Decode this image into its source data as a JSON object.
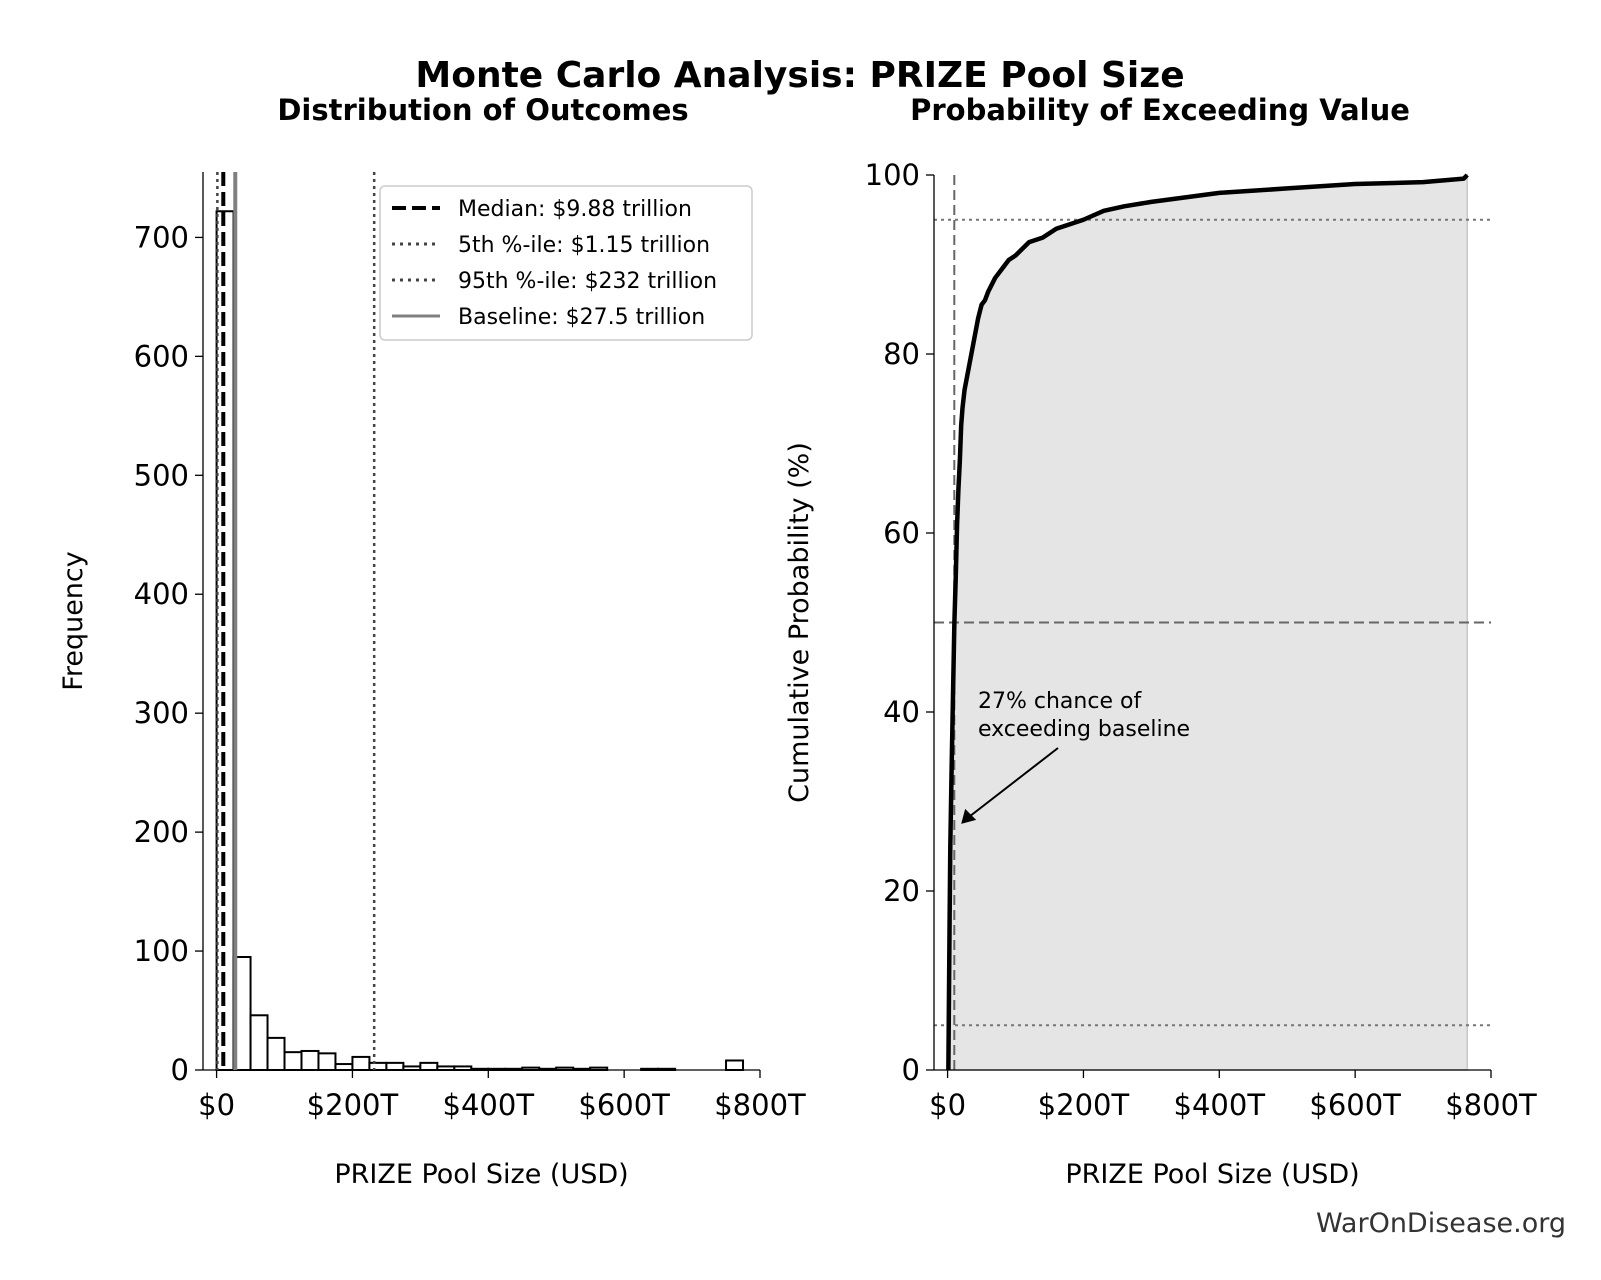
{
  "title": "Monte Carlo Analysis: PRIZE Pool Size",
  "credit": "WarOnDisease.org",
  "chart_data": [
    {
      "type": "bar",
      "subtitle": "Distribution of Outcomes",
      "xlabel": "PRIZE Pool Size (USD)",
      "ylabel": "Frequency",
      "xlim": [
        -20,
        800
      ],
      "ylim": [
        0,
        755
      ],
      "xticks": [
        0,
        200,
        400,
        600,
        800
      ],
      "xtick_labels": [
        "$0",
        "$200T",
        "$400T",
        "$600T",
        "$800T"
      ],
      "yticks": [
        0,
        100,
        200,
        300,
        400,
        500,
        600,
        700
      ],
      "ytick_labels": [
        "0",
        "100",
        "200",
        "300",
        "400",
        "500",
        "600",
        "700"
      ],
      "bin_width": 25,
      "bin_starts": [
        0,
        25,
        50,
        75,
        100,
        125,
        150,
        175,
        200,
        225,
        250,
        275,
        300,
        325,
        350,
        375,
        400,
        425,
        450,
        475,
        500,
        525,
        550,
        575,
        600,
        625,
        650,
        675,
        700,
        725,
        750
      ],
      "values": [
        722,
        95,
        46,
        27,
        15,
        16,
        14,
        5,
        11,
        6,
        6,
        3,
        6,
        3,
        3,
        1,
        1,
        1,
        2,
        1,
        2,
        1,
        2,
        0,
        0,
        1,
        1,
        0,
        0,
        0,
        8
      ],
      "reference_lines": [
        {
          "label": "Median: $9.88 trillion",
          "x": 9.88,
          "style": "dashed",
          "color": "#000000"
        },
        {
          "label": "5th %-ile: $1.15 trillion",
          "x": 1.15,
          "style": "dotted",
          "color": "#444444"
        },
        {
          "label": "95th %-ile: $232 trillion",
          "x": 232,
          "style": "dotted",
          "color": "#444444"
        },
        {
          "label": "Baseline: $27.5 trillion",
          "x": 27.5,
          "style": "solid",
          "color": "#808080"
        }
      ],
      "legend_position": "upper-right"
    },
    {
      "type": "line",
      "subtitle": "Probability of Exceeding Value",
      "xlabel": "PRIZE Pool Size (USD)",
      "ylabel": "Cumulative Probability (%)",
      "xlim": [
        -20,
        800
      ],
      "ylim": [
        0,
        100
      ],
      "xticks": [
        0,
        200,
        400,
        600,
        800
      ],
      "xtick_labels": [
        "$0",
        "$200T",
        "$400T",
        "$600T",
        "$800T"
      ],
      "yticks": [
        0,
        20,
        40,
        60,
        80,
        100
      ],
      "ytick_labels": [
        "0",
        "20",
        "40",
        "60",
        "80",
        "100"
      ],
      "x": [
        1.15,
        2,
        3,
        4,
        6,
        8,
        10,
        12,
        14,
        16,
        18,
        20,
        22,
        25,
        30,
        35,
        40,
        45,
        50,
        55,
        60,
        70,
        80,
        90,
        100,
        120,
        140,
        160,
        180,
        200,
        230,
        260,
        300,
        350,
        400,
        500,
        600,
        700,
        760,
        765
      ],
      "y": [
        0,
        8,
        17,
        25,
        34,
        42,
        50,
        55,
        61,
        65,
        68,
        72,
        74,
        76,
        78,
        80,
        82,
        84,
        85.5,
        86,
        87,
        88.5,
        89.5,
        90.5,
        91,
        92.5,
        93,
        94,
        94.5,
        95,
        96,
        96.5,
        97,
        97.5,
        98,
        98.5,
        99,
        99.2,
        99.6,
        100
      ],
      "hlines": [
        {
          "y": 95,
          "style": "dotted"
        },
        {
          "y": 50,
          "style": "dashed"
        },
        {
          "y": 5,
          "style": "dotted"
        }
      ],
      "vline": {
        "x": 9.88,
        "style": "dashed"
      },
      "annotation": {
        "lines": [
          "27% chance of",
          "exceeding baseline"
        ],
        "arrow_to": [
          20,
          27.5
        ]
      }
    }
  ]
}
